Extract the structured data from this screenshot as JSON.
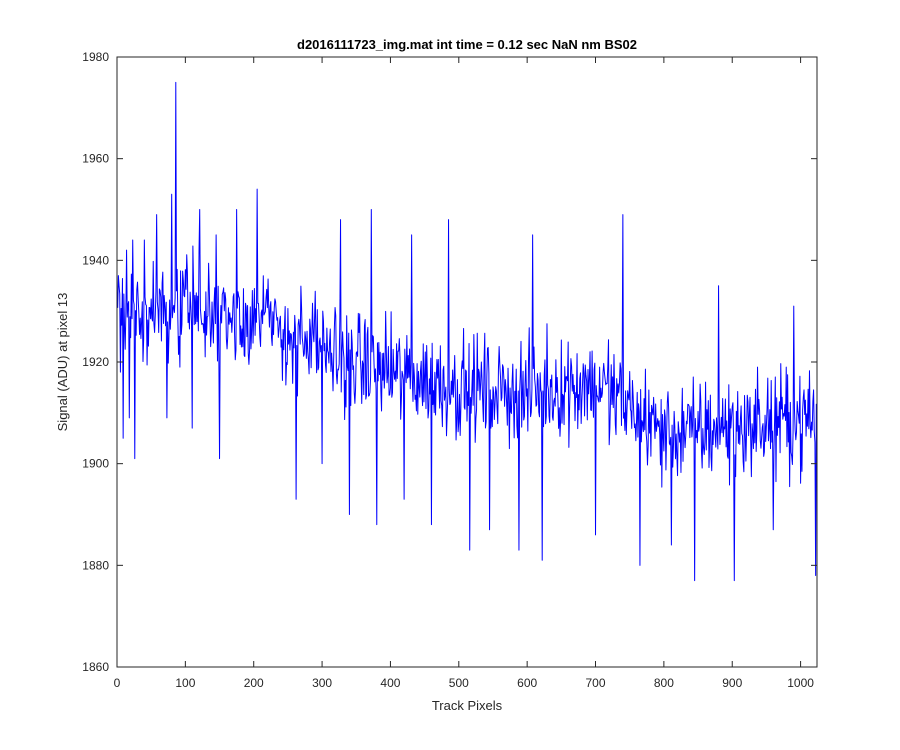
{
  "chart_data": {
    "type": "line",
    "title": "d2016111723_img.mat int time = 0.12 sec  NaN nm BS02",
    "xlabel": "Track Pixels",
    "ylabel": "Signal (ADU) at pixel 13",
    "xlim": [
      0,
      1024
    ],
    "ylim": [
      1860,
      1980
    ],
    "xticks": [
      0,
      100,
      200,
      300,
      400,
      500,
      600,
      700,
      800,
      900,
      1000
    ],
    "yticks": [
      1860,
      1880,
      1900,
      1920,
      1940,
      1960,
      1980
    ],
    "grid": false,
    "legend": "none",
    "line_color": "#0000ff",
    "series": [
      {
        "x_start": 1,
        "x_step": 1,
        "trend_points": [
          [
            1,
            1929
          ],
          [
            100,
            1930
          ],
          [
            200,
            1929
          ],
          [
            300,
            1922
          ],
          [
            400,
            1918
          ],
          [
            500,
            1915
          ],
          [
            600,
            1914
          ],
          [
            700,
            1916
          ],
          [
            800,
            1906
          ],
          [
            900,
            1907
          ],
          [
            1024,
            1909
          ]
        ],
        "noise_amplitude": 9,
        "spikes": [
          {
            "x": 2,
            "y": 1937
          },
          {
            "x": 5,
            "y": 1918
          },
          {
            "x": 9,
            "y": 1905
          },
          {
            "x": 14,
            "y": 1942
          },
          {
            "x": 18,
            "y": 1909
          },
          {
            "x": 23,
            "y": 1944
          },
          {
            "x": 26,
            "y": 1901
          },
          {
            "x": 40,
            "y": 1944
          },
          {
            "x": 58,
            "y": 1949
          },
          {
            "x": 73,
            "y": 1909
          },
          {
            "x": 80,
            "y": 1953
          },
          {
            "x": 86,
            "y": 1975
          },
          {
            "x": 92,
            "y": 1919
          },
          {
            "x": 110,
            "y": 1907
          },
          {
            "x": 121,
            "y": 1950
          },
          {
            "x": 145,
            "y": 1945
          },
          {
            "x": 150,
            "y": 1901
          },
          {
            "x": 175,
            "y": 1950
          },
          {
            "x": 190,
            "y": 1925
          },
          {
            "x": 205,
            "y": 1954
          },
          {
            "x": 262,
            "y": 1893
          },
          {
            "x": 300,
            "y": 1900
          },
          {
            "x": 327,
            "y": 1948
          },
          {
            "x": 340,
            "y": 1890
          },
          {
            "x": 372,
            "y": 1950
          },
          {
            "x": 380,
            "y": 1888
          },
          {
            "x": 420,
            "y": 1893
          },
          {
            "x": 431,
            "y": 1945
          },
          {
            "x": 460,
            "y": 1888
          },
          {
            "x": 485,
            "y": 1948
          },
          {
            "x": 516,
            "y": 1883
          },
          {
            "x": 545,
            "y": 1887
          },
          {
            "x": 588,
            "y": 1883
          },
          {
            "x": 608,
            "y": 1945
          },
          {
            "x": 622,
            "y": 1881
          },
          {
            "x": 700,
            "y": 1886
          },
          {
            "x": 740,
            "y": 1949
          },
          {
            "x": 765,
            "y": 1880
          },
          {
            "x": 811,
            "y": 1884
          },
          {
            "x": 845,
            "y": 1877
          },
          {
            "x": 880,
            "y": 1935
          },
          {
            "x": 903,
            "y": 1877
          },
          {
            "x": 960,
            "y": 1887
          },
          {
            "x": 990,
            "y": 1931
          },
          {
            "x": 1022,
            "y": 1878
          }
        ]
      }
    ]
  }
}
